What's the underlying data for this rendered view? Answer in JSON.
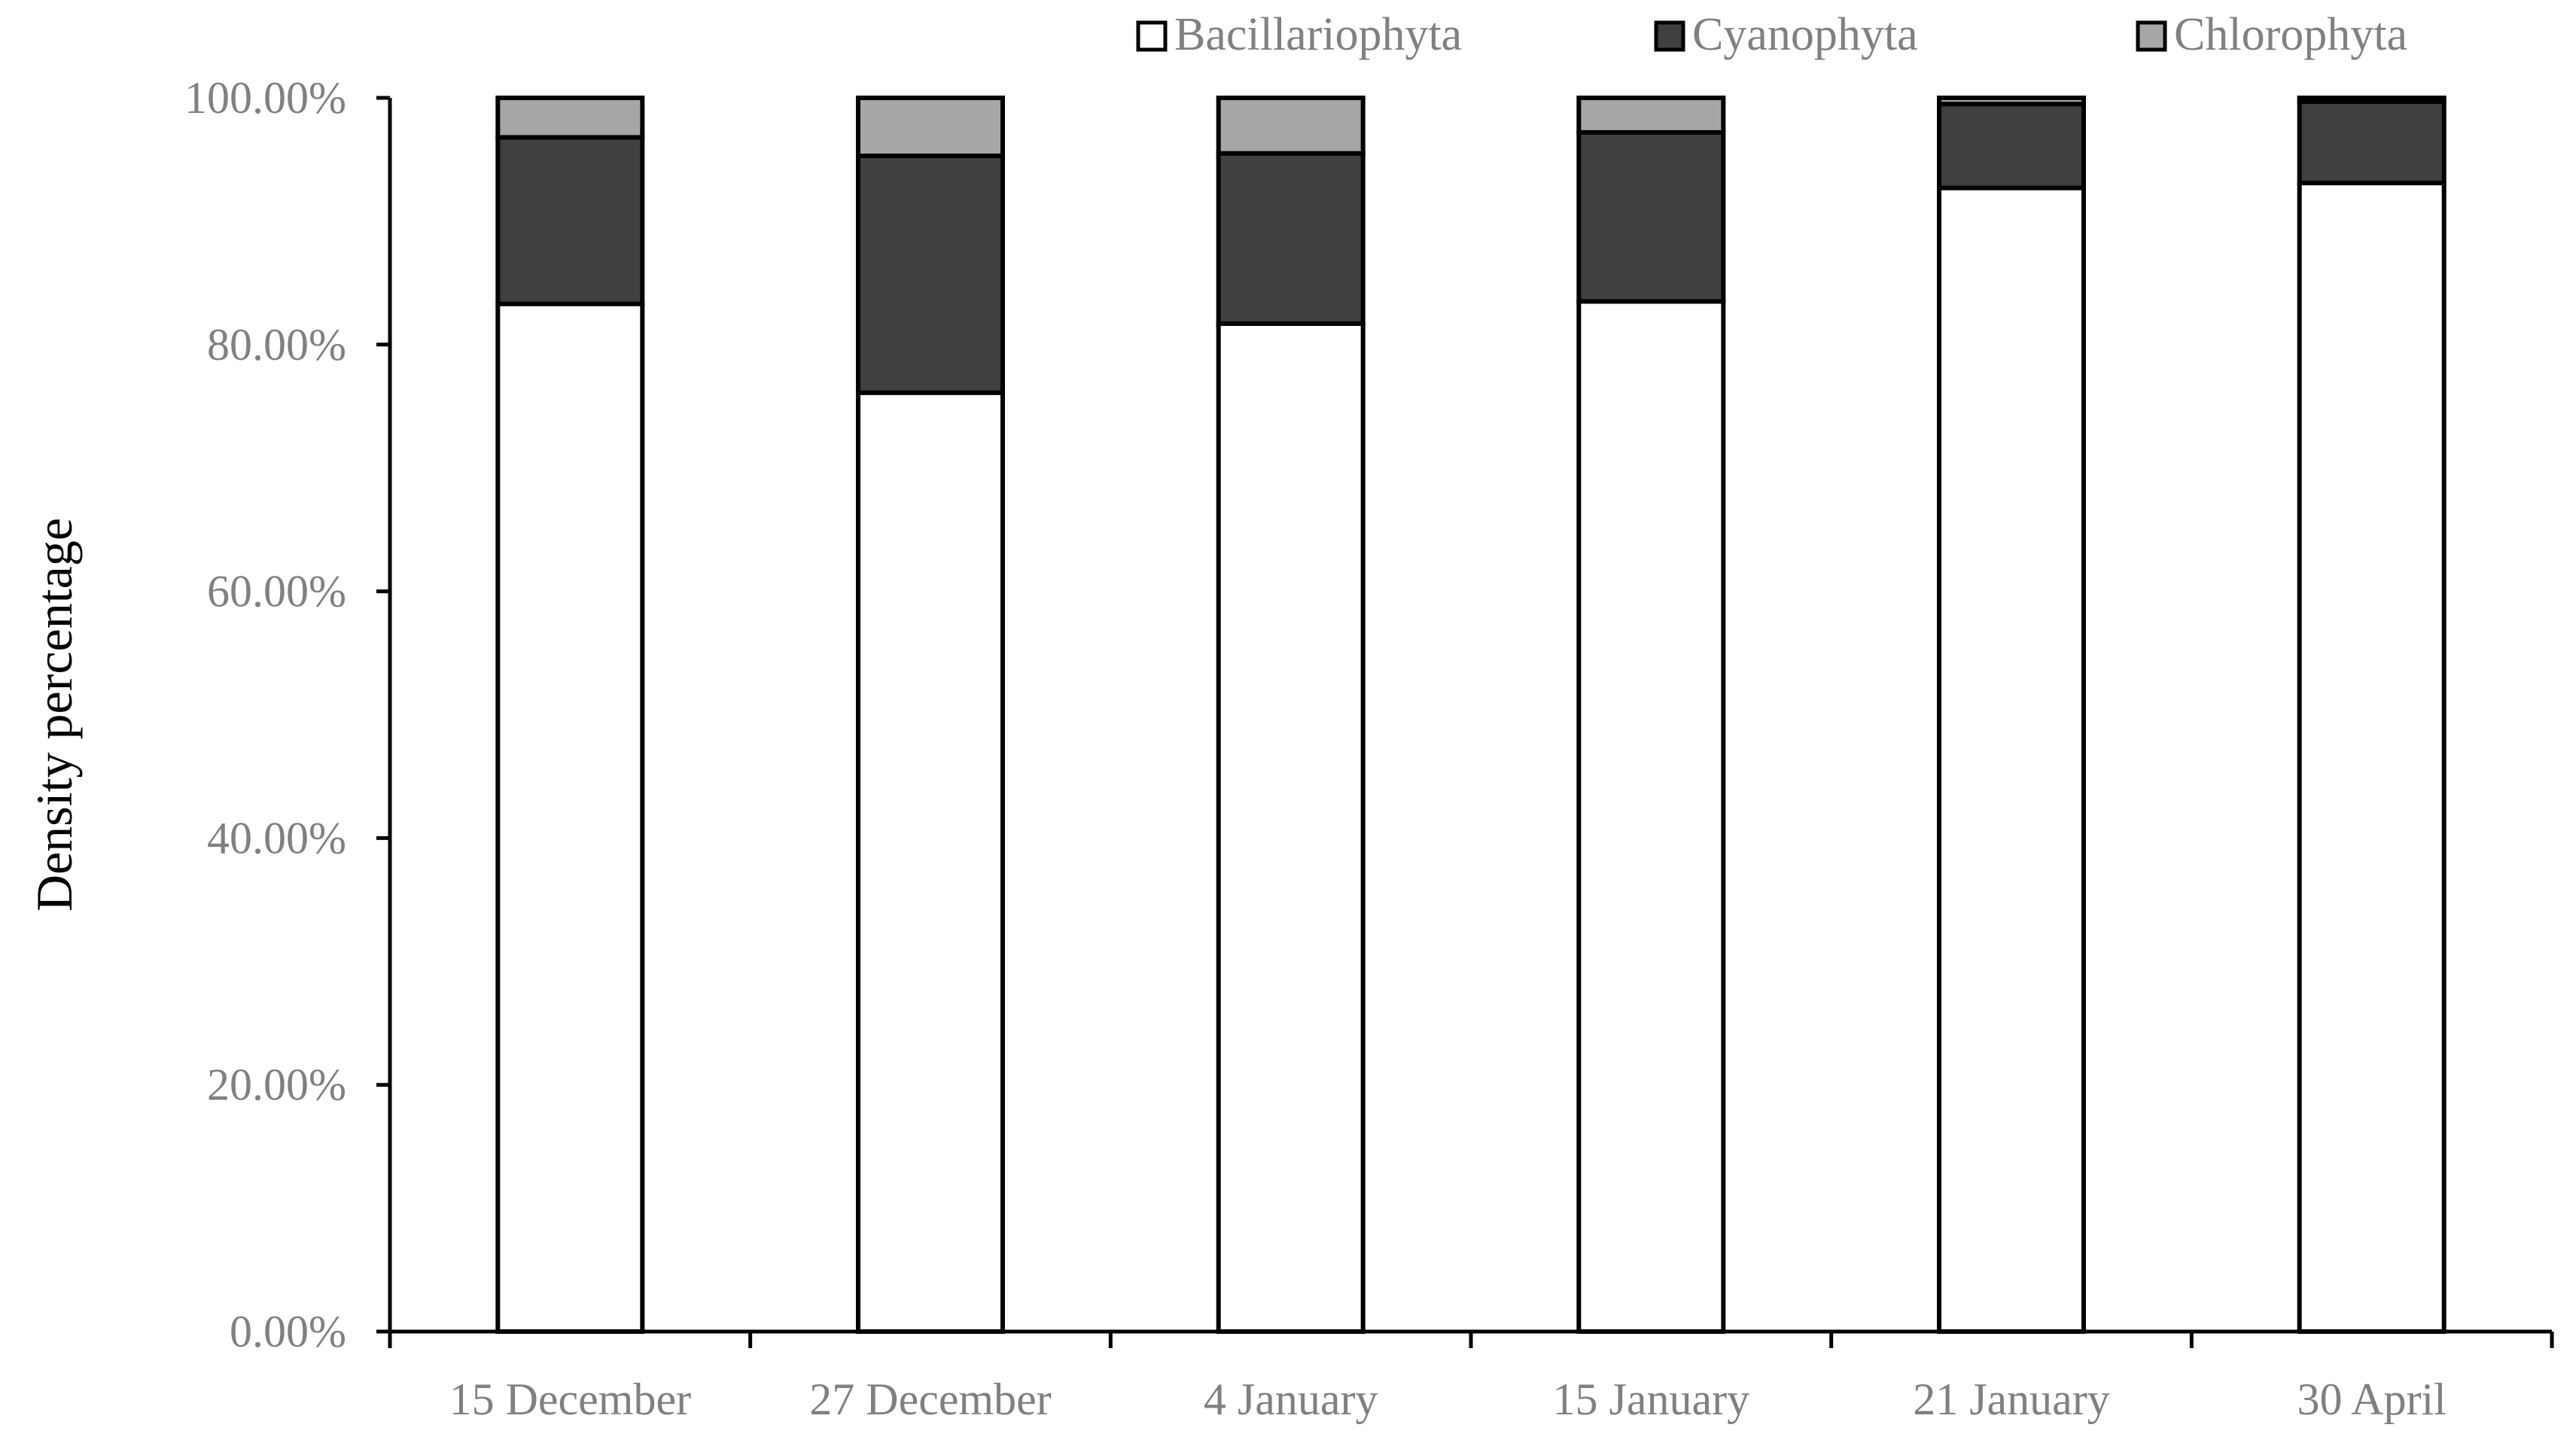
{
  "chart_data": {
    "type": "bar",
    "stacked": true,
    "categories": [
      "15 December",
      "27 December",
      "4 January",
      "15 January",
      "21 January",
      "30 April"
    ],
    "series": [
      {
        "name": "Bacillariophyta",
        "color": "#ffffff",
        "values": [
          83.3,
          76.1,
          81.7,
          83.5,
          92.7,
          93.1
        ]
      },
      {
        "name": "Cyanophyta",
        "color": "#404040",
        "values": [
          13.5,
          19.2,
          13.8,
          13.7,
          6.8,
          6.6
        ]
      },
      {
        "name": "Chlorophyta",
        "color": "#a6a6a6",
        "values": [
          3.2,
          4.7,
          4.5,
          2.8,
          0.5,
          0.3
        ]
      }
    ],
    "ylabel": "Density percentage",
    "xlabel": "",
    "ylim": [
      0,
      100
    ],
    "yticks": [
      "0.00%",
      "20.00%",
      "40.00%",
      "60.00%",
      "80.00%",
      "100.00%"
    ],
    "ytick_values": [
      0,
      20,
      40,
      60,
      80,
      100
    ],
    "legend_position": "top-right",
    "grid": false,
    "tick_label_color": "#808080",
    "axis_title_color": "#000000",
    "bar_outline_color": "#000000"
  }
}
